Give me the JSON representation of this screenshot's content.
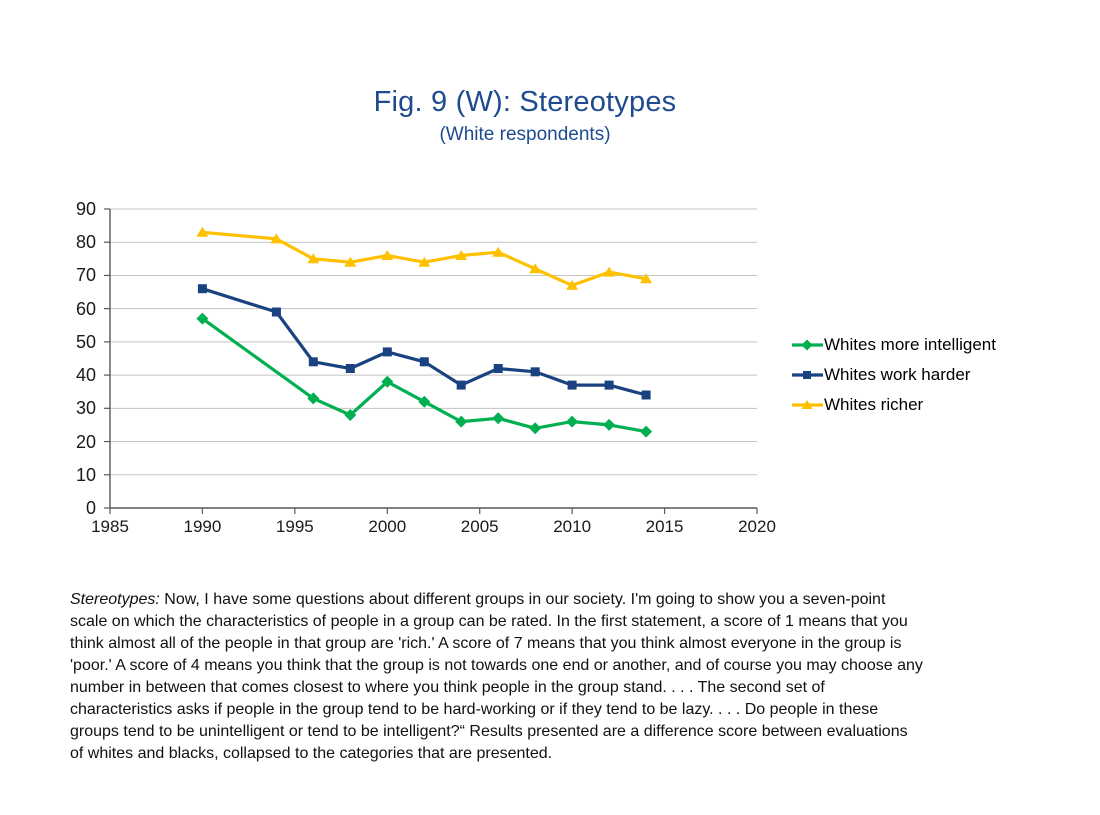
{
  "title": "Fig. 9 (W): Stereotypes",
  "subtitle": "(White respondents)",
  "colors": {
    "title": "#1E4B8F",
    "axis_line": "#595959",
    "gridline": "#C3C3C3",
    "tick_label": "#1A1A1A",
    "series_green": "#00B050",
    "series_blue": "#1B4280",
    "series_yellow": "#FFC000"
  },
  "chart_data": {
    "type": "line",
    "x": [
      1990,
      1994,
      1996,
      1998,
      2000,
      2002,
      2004,
      2006,
      2008,
      2010,
      2012,
      2014
    ],
    "series": [
      {
        "name": "Whites more intelligent",
        "color": "#00B050",
        "marker": "diamond",
        "values": [
          57,
          null,
          33,
          28,
          38,
          32,
          26,
          27,
          24,
          26,
          25,
          23
        ]
      },
      {
        "name": "Whites work harder",
        "color": "#1B4280",
        "marker": "square",
        "values": [
          66,
          59,
          44,
          42,
          47,
          44,
          37,
          42,
          41,
          37,
          37,
          34
        ]
      },
      {
        "name": "Whites richer",
        "color": "#FFC000",
        "marker": "triangle",
        "values": [
          83,
          81,
          75,
          74,
          76,
          74,
          76,
          77,
          72,
          67,
          71,
          69
        ]
      }
    ],
    "title": "Fig. 9 (W): Stereotypes",
    "subtitle": "(White respondents)",
    "xlabel": "",
    "ylabel": "",
    "xlim": [
      1985,
      2020
    ],
    "ylim": [
      0,
      90
    ],
    "x_ticks": [
      1985,
      1990,
      1995,
      2000,
      2005,
      2010,
      2015,
      2020
    ],
    "y_ticks": [
      0,
      10,
      20,
      30,
      40,
      50,
      60,
      70,
      80,
      90
    ],
    "grid": "horizontal",
    "legend_position": "right"
  },
  "legend": {
    "items": [
      {
        "label": "Whites more intelligent"
      },
      {
        "label": "Whites work harder"
      },
      {
        "label": "Whites richer"
      }
    ]
  },
  "footnote": {
    "lead": "Stereotypes:",
    "lines": [
      "Now, I have some questions about different groups in our society. I'm going to show you a seven-point",
      "scale on which the characteristics of people in a group can be rated. In the first statement, a score of 1 means that you",
      "think almost all of the people in that group are 'rich.' A score of 7 means that you think almost everyone in the group is",
      "'poor.' A score of 4 means you think that the group is not towards one end or another, and of course you may choose any",
      "number in between that comes closest to where you think people in the group stand. . . . The second set of",
      "characteristics asks if people in the group tend to be hard-working or if they tend to be lazy. . . . Do people in these",
      "groups tend to be unintelligent or tend to be intelligent?“ Results presented are a difference score between evaluations",
      "of whites and blacks, collapsed to the categories that are presented."
    ]
  }
}
